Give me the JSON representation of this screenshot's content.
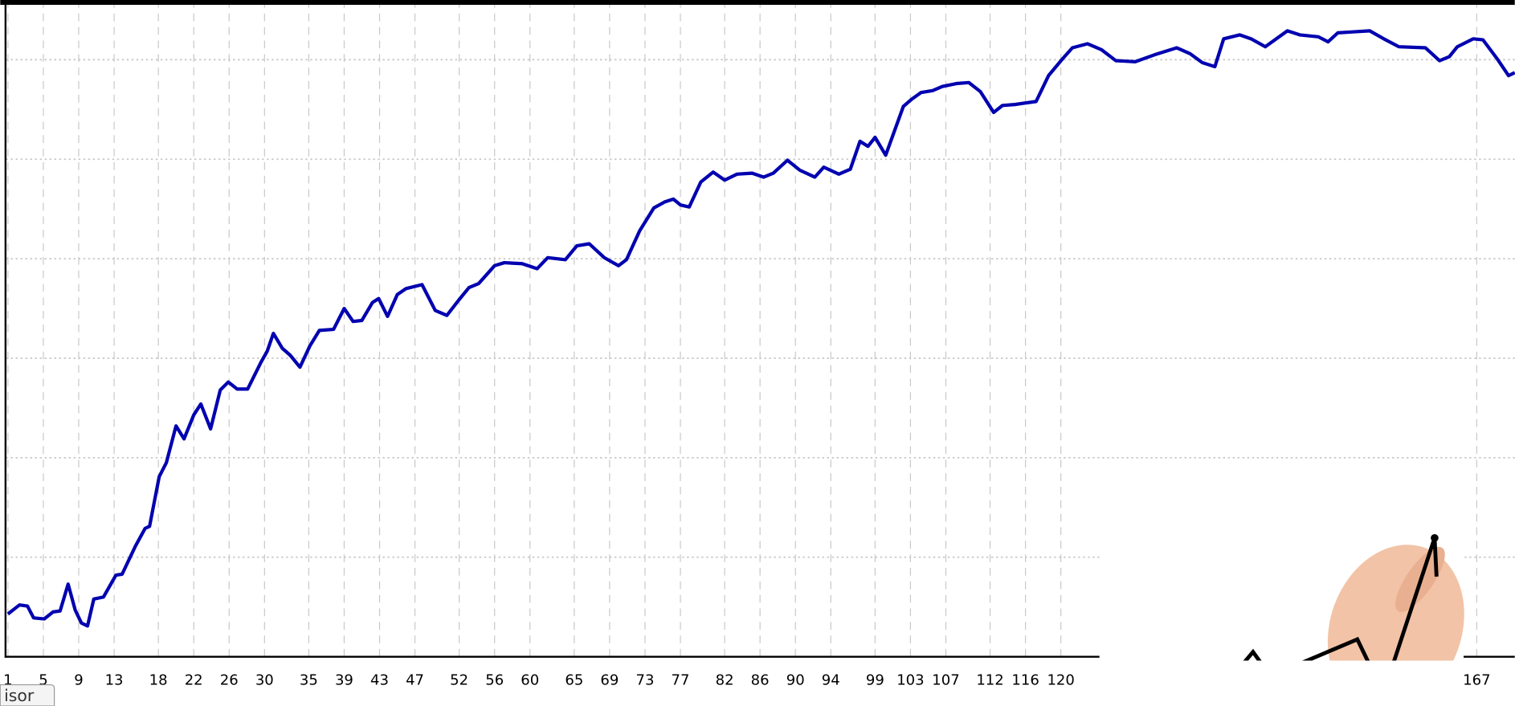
{
  "chart_data": {
    "type": "line",
    "x": [
      1.0,
      2.3,
      3.2,
      3.9,
      5.1,
      6.1,
      6.9,
      7.8,
      8.6,
      9.3,
      10.0,
      10.7,
      11.8,
      13.2,
      13.9,
      15.4,
      16.5,
      17.0,
      18.1,
      18.9,
      20.0,
      20.9,
      22.0,
      22.8,
      23.9,
      25.0,
      25.9,
      26.9,
      28.1,
      29.6,
      30.3,
      31.0,
      32.0,
      32.9,
      34.0,
      35.1,
      36.2,
      37.8,
      39.0,
      40.0,
      41.0,
      42.2,
      42.9,
      43.9,
      45.0,
      46.0,
      47.8,
      49.3,
      50.6,
      52.0,
      53.1,
      54.2,
      56.0,
      57.1,
      59.1,
      60.8,
      62.0,
      64.0,
      65.3,
      66.7,
      68.4,
      70.0,
      70.9,
      72.4,
      74.0,
      75.2,
      76.2,
      77.0,
      78.0,
      79.3,
      80.7,
      82.0,
      83.4,
      85.1,
      86.4,
      87.5,
      89.1,
      90.5,
      92.2,
      93.2,
      94.9,
      96.2,
      97.3,
      98.2,
      99.0,
      100.2,
      102.2,
      103.1,
      104.2,
      105.5,
      106.6,
      108.2,
      109.6,
      110.9,
      112.4,
      113.4,
      114.8,
      117.2,
      118.6,
      120.2,
      121.3,
      123.0,
      124.6,
      126.2,
      128.4,
      130.6,
      133.1,
      134.6,
      136.0,
      137.4,
      138.4,
      140.2,
      141.5,
      143.1,
      145.6,
      147.0,
      149.1,
      150.2,
      151.3,
      153.0,
      154.9,
      156.5,
      158.2,
      161.2,
      162.8,
      163.9,
      164.8,
      166.6,
      167.7,
      169.3,
      170.6,
      171.3
    ],
    "series": [
      {
        "color": "#0000b0",
        "values": [
          0.43,
          0.52,
          0.51,
          0.39,
          0.38,
          0.45,
          0.46,
          0.73,
          0.47,
          0.34,
          0.31,
          0.58,
          0.6,
          0.82,
          0.83,
          1.11,
          1.29,
          1.31,
          1.81,
          1.95,
          2.32,
          2.19,
          2.43,
          2.54,
          2.29,
          2.68,
          2.76,
          2.69,
          2.69,
          2.96,
          3.07,
          3.25,
          3.1,
          3.03,
          2.91,
          3.12,
          3.28,
          3.29,
          3.5,
          3.37,
          3.38,
          3.56,
          3.6,
          3.42,
          3.64,
          3.7,
          3.74,
          3.48,
          3.43,
          3.59,
          3.71,
          3.75,
          3.93,
          3.96,
          3.95,
          3.9,
          4.01,
          3.99,
          4.13,
          4.15,
          4.01,
          3.93,
          3.99,
          4.28,
          4.51,
          4.57,
          4.6,
          4.54,
          4.52,
          4.77,
          4.87,
          4.79,
          4.85,
          4.86,
          4.82,
          4.86,
          4.99,
          4.89,
          4.82,
          4.92,
          4.85,
          4.9,
          5.18,
          5.13,
          5.22,
          5.04,
          5.53,
          5.6,
          5.67,
          5.69,
          5.73,
          5.76,
          5.77,
          5.68,
          5.47,
          5.54,
          5.55,
          5.58,
          5.84,
          6.01,
          6.12,
          6.16,
          6.1,
          5.99,
          5.98,
          6.05,
          6.12,
          6.06,
          5.97,
          5.93,
          6.21,
          6.25,
          6.21,
          6.13,
          6.29,
          6.25,
          6.23,
          6.18,
          6.27,
          6.28,
          6.29,
          6.21,
          6.13,
          6.12,
          5.99,
          6.03,
          6.13,
          6.21,
          6.2,
          6.01,
          5.84,
          5.87
        ]
      }
    ],
    "xlim": [
      1,
      171.3
    ],
    "xticks": [
      1,
      5,
      9,
      13,
      18,
      22,
      26,
      30,
      35,
      39,
      43,
      47,
      52,
      56,
      60,
      65,
      69,
      73,
      77,
      82,
      86,
      90,
      94,
      99,
      103,
      107,
      112,
      116,
      120,
      167
    ],
    "ylim": [
      0,
      6.6
    ],
    "yticks": [
      1,
      2,
      3,
      4,
      5,
      6
    ],
    "grid": true
  },
  "tab_label": "isor"
}
